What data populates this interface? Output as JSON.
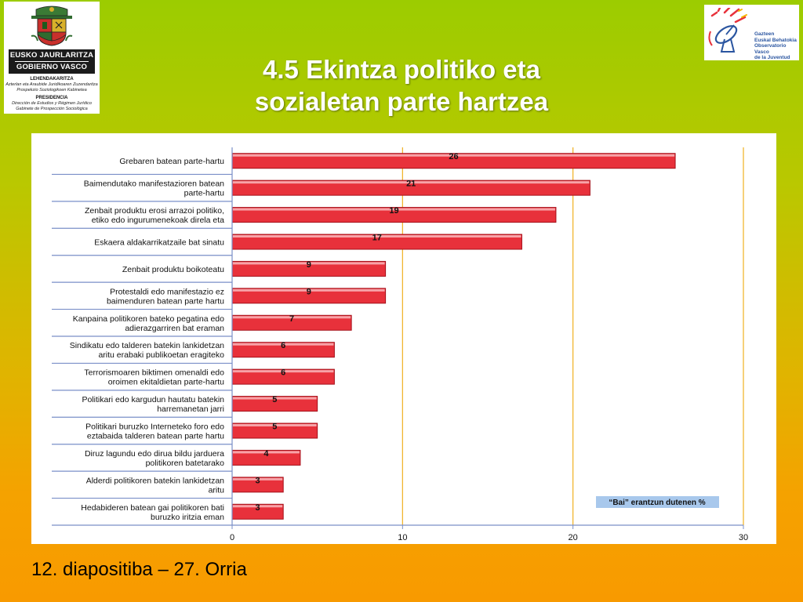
{
  "header": {
    "left_logo": {
      "line1": "EUSKO JAURLARITZA",
      "line2": "GOBIERNO VASCO",
      "line3": "LEHENDAKARITZA",
      "line4": "Azterlan eta Araubide Juridikoaren Zuzendaritza",
      "line5": "Prospekzio Soziologikoen Kabinetea",
      "line6": "PRESIDENCIA",
      "line7": "Dirección de Estudios y Régimen Jurídico",
      "line8": "Gabinete de Prospección Sociológica"
    },
    "right_logo": {
      "line1": "Gazteen",
      "line2": "Euskal Behatokia",
      "line3": "Observatorio Vasco",
      "line4": "de la Juventud"
    },
    "title_line1": "4.5 Ekintza politiko eta",
    "title_line2": "sozialetan parte hartzea"
  },
  "footer": {
    "text": "12. diapositiba – 27. Orria"
  },
  "colors": {
    "bar_fill": "#e8313b",
    "bar_edge": "#a5101a",
    "legend_bg": "#a8c8ec",
    "gridline": "#f0b020",
    "axis": "#7a8fc8"
  },
  "chart_data": {
    "type": "bar",
    "orientation": "horizontal",
    "categories": [
      [
        "Grebaren batean parte-hartu"
      ],
      [
        "Baimendutako manifestazioren batean",
        "parte-hartu"
      ],
      [
        "Zenbait produktu erosi arrazoi politiko,",
        "etiko edo ingurumenekoak direla eta"
      ],
      [
        "Eskaera aldakarrikatzaile bat sinatu"
      ],
      [
        "Zenbait produktu boikoteatu"
      ],
      [
        "Protestaldi edo manifestazio ez",
        "baimenduren batean parte hartu"
      ],
      [
        "Kanpaina politikoren bateko pegatina edo",
        "adierazgarriren bat eraman"
      ],
      [
        "Sindikatu edo talderen batekin lankidetzan",
        "aritu erabaki publikoetan eragiteko"
      ],
      [
        "Terrorismoaren biktimen omenaldi edo",
        "oroimen ekitaldietan parte-hartu"
      ],
      [
        "Politikari edo kargudun hautatu batekin",
        "harremanetan jarri"
      ],
      [
        "Politikari buruzko Interneteko foro edo",
        "eztabaida talderen batean parte hartu"
      ],
      [
        "Diruz lagundu edo dirua bildu jarduera",
        "politikoren batetarako"
      ],
      [
        "Alderdi politikoren batekin lankidetzan",
        "aritu"
      ],
      [
        "Hedabideren batean gai politikoren bati",
        "buruzko iritzia eman"
      ]
    ],
    "values": [
      26,
      21,
      19,
      17,
      9,
      9,
      7,
      6,
      6,
      5,
      5,
      4,
      3,
      3
    ],
    "legend": "“Bai” erantzun dutenen %",
    "legend_position": "bottom-right",
    "xlim": [
      0,
      30
    ],
    "xticks": [
      0,
      10,
      20,
      30
    ],
    "grid": "vertical"
  }
}
